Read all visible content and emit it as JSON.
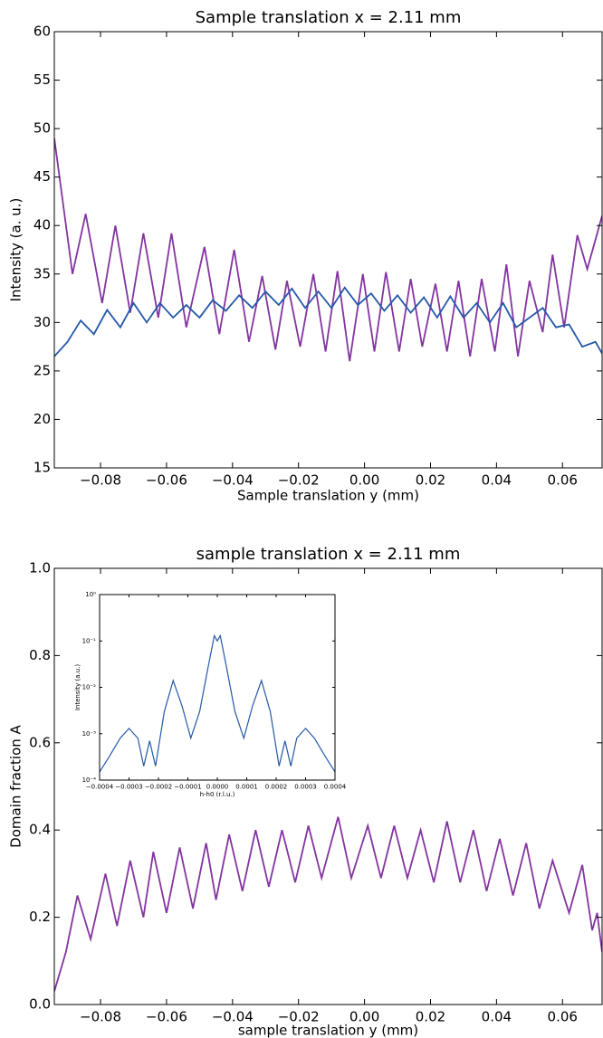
{
  "chart_data": [
    {
      "type": "line",
      "title": "Sample translation x = 2.11 mm",
      "x_label": "Sample translation y (mm)",
      "y_label": "Intensity (a. u.)",
      "xlim": [
        -0.094,
        0.072
      ],
      "ylim": [
        15,
        60
      ],
      "xticks": [
        {
          "value": -0.08,
          "label": "−0.08"
        },
        {
          "value": -0.06,
          "label": "−0.06"
        },
        {
          "value": -0.04,
          "label": "−0.04"
        },
        {
          "value": -0.02,
          "label": "−0.02"
        },
        {
          "value": 0,
          "label": "0.00"
        },
        {
          "value": 0.02,
          "label": "0.02"
        },
        {
          "value": 0.04,
          "label": "0.04"
        },
        {
          "value": 0.06,
          "label": "0.06"
        }
      ],
      "yticks": [
        15,
        20,
        25,
        30,
        35,
        40,
        45,
        50,
        55,
        60
      ],
      "series": [
        {
          "color": "#8334a0",
          "x": [
            -0.094,
            -0.0885,
            -0.0845,
            -0.0795,
            -0.0755,
            -0.071,
            -0.067,
            -0.0625,
            -0.0585,
            -0.054,
            -0.0485,
            -0.044,
            -0.0395,
            -0.035,
            -0.031,
            -0.027,
            -0.0235,
            -0.0195,
            -0.0155,
            -0.0118,
            -0.0082,
            -0.0045,
            -0.0005,
            0.003,
            0.0065,
            0.0105,
            0.014,
            0.0175,
            0.0215,
            0.025,
            0.0285,
            0.032,
            0.0355,
            0.0395,
            0.043,
            0.0465,
            0.05,
            0.054,
            0.057,
            0.0605,
            0.0645,
            0.0675,
            0.072
          ],
          "values": [
            49,
            35,
            41.2,
            32,
            40,
            31,
            39.2,
            30.5,
            39.2,
            29.5,
            37.8,
            28.8,
            37.5,
            28,
            34.8,
            27.2,
            34.3,
            27.5,
            35,
            27,
            35.3,
            26,
            35,
            27,
            35.2,
            27,
            34.5,
            27.5,
            34,
            27,
            34.3,
            26.5,
            34.5,
            27,
            36,
            26.5,
            34.3,
            29,
            37,
            29.5,
            39,
            35.5,
            41
          ]
        },
        {
          "color": "#2458a8",
          "x": [
            -0.094,
            -0.09,
            -0.086,
            -0.082,
            -0.078,
            -0.074,
            -0.07,
            -0.066,
            -0.062,
            -0.058,
            -0.054,
            -0.05,
            -0.046,
            -0.042,
            -0.038,
            -0.034,
            -0.03,
            -0.026,
            -0.022,
            -0.018,
            -0.014,
            -0.01,
            -0.006,
            -0.002,
            0.002,
            0.006,
            0.01,
            0.014,
            0.018,
            0.022,
            0.026,
            0.03,
            0.034,
            0.038,
            0.042,
            0.046,
            0.05,
            0.054,
            0.058,
            0.062,
            0.066,
            0.07,
            0.072
          ],
          "values": [
            26.5,
            28,
            30.2,
            28.8,
            31.3,
            29.5,
            32,
            30,
            32,
            30.5,
            31.8,
            30.5,
            32.3,
            31.2,
            32.8,
            31.5,
            33.2,
            31.8,
            33.5,
            31.5,
            33.2,
            31.5,
            33.6,
            31.8,
            33,
            31.2,
            32.8,
            31,
            32.6,
            30.5,
            32.7,
            30.5,
            32,
            30,
            32,
            29.5,
            30.5,
            31.5,
            29.5,
            29.8,
            27.5,
            28,
            26.8
          ]
        }
      ]
    },
    {
      "type": "line",
      "title": "sample translation x = 2.11 mm",
      "x_label": "sample translation y (mm)",
      "y_label": "Domain fraction A",
      "xlim": [
        -0.094,
        0.072
      ],
      "ylim": [
        0,
        1
      ],
      "xticks": [
        {
          "value": -0.08,
          "label": "−0.08"
        },
        {
          "value": -0.06,
          "label": "−0.06"
        },
        {
          "value": -0.04,
          "label": "−0.04"
        },
        {
          "value": -0.02,
          "label": "−0.02"
        },
        {
          "value": 0,
          "label": "0.00"
        },
        {
          "value": 0.02,
          "label": "0.02"
        },
        {
          "value": 0.04,
          "label": "0.04"
        },
        {
          "value": 0.06,
          "label": "0.06"
        }
      ],
      "yticks": [
        {
          "value": 0,
          "label": "0.0"
        },
        0.2,
        0.4,
        0.6,
        0.8,
        {
          "value": 1,
          "label": "1.0"
        }
      ],
      "series": [
        {
          "color": "#8334a0",
          "x": [
            -0.094,
            -0.0905,
            -0.087,
            -0.083,
            -0.0785,
            -0.075,
            -0.071,
            -0.067,
            -0.064,
            -0.06,
            -0.056,
            -0.052,
            -0.048,
            -0.045,
            -0.041,
            -0.037,
            -0.033,
            -0.029,
            -0.025,
            -0.021,
            -0.017,
            -0.013,
            -0.008,
            -0.004,
            0.001,
            0.005,
            0.009,
            0.013,
            0.017,
            0.021,
            0.025,
            0.029,
            0.033,
            0.037,
            0.041,
            0.045,
            0.049,
            0.053,
            0.057,
            0.062,
            0.066,
            0.069,
            0.0705,
            0.072
          ],
          "values": [
            0.03,
            0.12,
            0.25,
            0.15,
            0.3,
            0.18,
            0.33,
            0.2,
            0.35,
            0.21,
            0.36,
            0.22,
            0.37,
            0.24,
            0.39,
            0.26,
            0.4,
            0.27,
            0.4,
            0.28,
            0.41,
            0.29,
            0.43,
            0.29,
            0.41,
            0.29,
            0.41,
            0.29,
            0.4,
            0.28,
            0.42,
            0.28,
            0.4,
            0.26,
            0.38,
            0.25,
            0.37,
            0.22,
            0.33,
            0.21,
            0.32,
            0.17,
            0.21,
            0.12
          ]
        }
      ]
    },
    {
      "type": "line",
      "x_label": "h-h0 (r.l.u.)",
      "y_label": "Intensity (a.u.)",
      "log_y": true,
      "xlim": [
        -0.0004,
        0.0004
      ],
      "ylim": [
        0.0001,
        1
      ],
      "xticks": [
        {
          "value": -0.0004,
          "label": "−0.0004"
        },
        {
          "value": -0.0003,
          "label": "−0.0003"
        },
        {
          "value": -0.0002,
          "label": "−0.0002"
        },
        {
          "value": -0.0001,
          "label": "−0.0001"
        },
        {
          "value": 0,
          "label": "0.0000"
        },
        0.0001,
        0.0002,
        0.0003,
        0.0004
      ],
      "yticks": [
        {
          "value": 0.0001,
          "label": "10⁻⁴"
        },
        {
          "value": 0.001,
          "label": "10⁻³"
        },
        {
          "value": 0.01,
          "label": "10⁻²"
        },
        {
          "value": 0.1,
          "label": "10⁻¹"
        },
        {
          "value": 1,
          "label": "10⁰"
        }
      ],
      "series": [
        {
          "color": "#2458a8",
          "x": [
            -0.0004,
            -0.00037,
            -0.00033,
            -0.0003,
            -0.00027,
            -0.00025,
            -0.00023,
            -0.00021,
            -0.00018,
            -0.00015,
            -0.00012,
            -9e-05,
            -6e-05,
            -3e-05,
            -1e-05,
            0,
            1e-05,
            3e-05,
            6e-05,
            9e-05,
            0.00012,
            0.00015,
            0.00018,
            0.00021,
            0.00023,
            0.00025,
            0.00027,
            0.0003,
            0.00033,
            0.00037,
            0.0004
          ],
          "values": [
            0.00015,
            0.0003,
            0.0008,
            0.0013,
            0.0008,
            0.0002,
            0.0007,
            0.0002,
            0.003,
            0.014,
            0.004,
            0.0008,
            0.003,
            0.03,
            0.13,
            0.1,
            0.13,
            0.03,
            0.003,
            0.0008,
            0.004,
            0.014,
            0.003,
            0.0002,
            0.0007,
            0.0002,
            0.0008,
            0.0013,
            0.0008,
            0.0003,
            0.00015
          ]
        }
      ]
    }
  ]
}
